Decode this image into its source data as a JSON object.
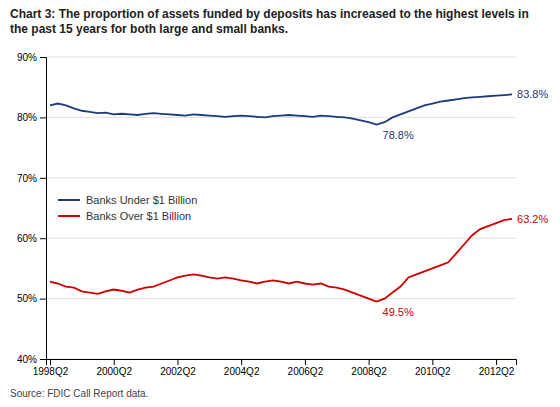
{
  "chart_data": {
    "type": "line",
    "title": "Chart 3: The proportion of assets funded by deposits has increased to the highest levels in the past 15 years for both large and small banks.",
    "source": "Source: FDIC Call Report data.",
    "categories": [
      "1998Q2",
      null,
      null,
      null,
      null,
      null,
      null,
      null,
      "2000Q2",
      null,
      null,
      null,
      null,
      null,
      null,
      null,
      "2002Q2",
      null,
      null,
      null,
      null,
      null,
      null,
      null,
      "2004Q2",
      null,
      null,
      null,
      null,
      null,
      null,
      null,
      "2006Q2",
      null,
      null,
      null,
      null,
      null,
      null,
      null,
      "2008Q2",
      null,
      null,
      null,
      null,
      null,
      null,
      null,
      "2010Q2",
      null,
      null,
      null,
      null,
      null,
      null,
      null,
      "2012Q2",
      null,
      null
    ],
    "series": [
      {
        "name": "Banks Under $1 Billion",
        "color": "#1F3A7A",
        "values": [
          82.0,
          82.3,
          82.0,
          81.5,
          81.1,
          80.9,
          80.7,
          80.8,
          80.5,
          80.6,
          80.5,
          80.4,
          80.6,
          80.7,
          80.6,
          80.5,
          80.4,
          80.3,
          80.5,
          80.4,
          80.3,
          80.2,
          80.1,
          80.2,
          80.3,
          80.2,
          80.1,
          80.0,
          80.2,
          80.3,
          80.4,
          80.3,
          80.2,
          80.1,
          80.3,
          80.2,
          80.1,
          80.0,
          79.8,
          79.5,
          79.2,
          78.8,
          79.2,
          80.0,
          80.5,
          81.0,
          81.5,
          82.0,
          82.3,
          82.6,
          82.8,
          83.0,
          83.2,
          83.3,
          83.4,
          83.5,
          83.6,
          83.7,
          83.8
        ]
      },
      {
        "name": "Banks Over $1 Billion",
        "color": "#CC0000",
        "values": [
          52.8,
          52.5,
          52.0,
          51.8,
          51.2,
          51.0,
          50.8,
          51.2,
          51.5,
          51.3,
          51.0,
          51.5,
          51.8,
          52.0,
          52.5,
          53.0,
          53.5,
          53.8,
          54.0,
          53.8,
          53.5,
          53.3,
          53.5,
          53.3,
          53.0,
          52.8,
          52.5,
          52.8,
          53.0,
          52.8,
          52.5,
          52.8,
          52.5,
          52.3,
          52.5,
          52.0,
          51.8,
          51.5,
          51.0,
          50.5,
          50.0,
          49.5,
          50.0,
          51.0,
          52.0,
          53.5,
          54.0,
          54.5,
          55.0,
          55.5,
          56.0,
          57.5,
          59.0,
          60.5,
          61.5,
          62.0,
          62.5,
          63.0,
          63.2
        ]
      }
    ],
    "annotations": [
      {
        "text": "78.8%",
        "series": 0,
        "index": 41
      },
      {
        "text": "83.8%",
        "series": 0,
        "index": 58
      },
      {
        "text": "49.5%",
        "series": 1,
        "index": 41
      },
      {
        "text": "63.2%",
        "series": 1,
        "index": 58
      }
    ],
    "ylim": [
      40,
      90
    ],
    "yticks": [
      {
        "value": 40,
        "label": "40%"
      },
      {
        "value": 50,
        "label": "50%"
      },
      {
        "value": 60,
        "label": "60%"
      },
      {
        "value": 70,
        "label": "70%"
      },
      {
        "value": 80,
        "label": "80%"
      },
      {
        "value": 90,
        "label": "90%"
      }
    ],
    "grid": true,
    "legend": "center left"
  }
}
